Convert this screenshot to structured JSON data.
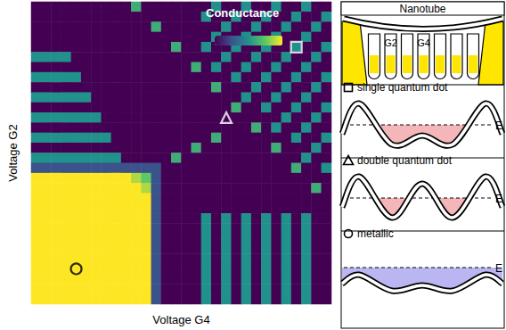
{
  "chart_data": {
    "type": "heatmap",
    "x_label": "Voltage G4",
    "y_label": "Voltage G2",
    "colorbar_label": "Conductance",
    "tick_labels": false,
    "cells": [
      [
        1,
        1,
        1,
        1,
        1,
        1,
        1,
        1,
        1,
        1,
        6,
        1,
        1,
        1,
        1,
        1,
        1,
        1,
        5,
        1,
        1,
        5,
        1,
        1,
        5,
        1,
        1,
        5,
        1,
        1
      ],
      [
        1,
        1,
        1,
        1,
        1,
        1,
        1,
        1,
        1,
        1,
        1,
        1,
        1,
        1,
        1,
        1,
        1,
        5,
        1,
        1,
        5,
        1,
        1,
        5,
        1,
        1,
        5,
        1,
        1,
        5
      ],
      [
        1,
        1,
        1,
        1,
        1,
        1,
        1,
        1,
        1,
        1,
        1,
        1,
        6,
        1,
        1,
        1,
        1,
        1,
        1,
        5,
        1,
        1,
        5,
        1,
        1,
        5,
        1,
        1,
        5,
        1
      ],
      [
        1,
        1,
        1,
        1,
        1,
        1,
        1,
        1,
        1,
        1,
        1,
        1,
        1,
        1,
        1,
        1,
        1,
        1,
        5,
        1,
        1,
        5,
        1,
        1,
        5,
        1,
        1,
        5,
        1,
        1
      ],
      [
        1,
        1,
        1,
        1,
        1,
        1,
        1,
        1,
        1,
        1,
        1,
        1,
        1,
        1,
        6,
        1,
        1,
        5,
        1,
        1,
        5,
        1,
        1,
        5,
        1,
        1,
        5,
        1,
        1,
        5
      ],
      [
        5,
        5,
        5,
        5,
        1,
        1,
        1,
        1,
        1,
        1,
        1,
        1,
        1,
        1,
        1,
        1,
        1,
        1,
        1,
        5,
        1,
        1,
        5,
        1,
        1,
        5,
        1,
        1,
        5,
        1
      ],
      [
        1,
        1,
        1,
        1,
        1,
        1,
        1,
        1,
        1,
        1,
        1,
        1,
        1,
        1,
        1,
        1,
        6,
        1,
        5,
        1,
        1,
        5,
        1,
        1,
        5,
        1,
        1,
        5,
        1,
        1
      ],
      [
        5,
        5,
        5,
        5,
        5,
        1,
        1,
        1,
        1,
        1,
        1,
        1,
        1,
        1,
        1,
        1,
        1,
        1,
        1,
        1,
        5,
        1,
        1,
        5,
        1,
        1,
        5,
        1,
        1,
        5
      ],
      [
        1,
        1,
        1,
        1,
        1,
        1,
        1,
        1,
        1,
        1,
        1,
        1,
        1,
        1,
        1,
        1,
        1,
        1,
        6,
        1,
        1,
        1,
        5,
        1,
        1,
        5,
        1,
        1,
        5,
        1
      ],
      [
        5,
        5,
        5,
        5,
        5,
        5,
        1,
        1,
        1,
        1,
        1,
        1,
        1,
        1,
        1,
        1,
        1,
        1,
        1,
        1,
        1,
        5,
        1,
        1,
        5,
        1,
        1,
        5,
        1,
        1
      ],
      [
        1,
        1,
        1,
        1,
        1,
        1,
        1,
        1,
        1,
        1,
        1,
        1,
        1,
        1,
        1,
        1,
        1,
        1,
        1,
        1,
        6,
        1,
        1,
        5,
        1,
        1,
        5,
        1,
        1,
        5
      ],
      [
        5,
        5,
        5,
        5,
        5,
        5,
        5,
        1,
        1,
        1,
        1,
        1,
        1,
        1,
        1,
        1,
        1,
        1,
        1,
        1,
        1,
        1,
        1,
        1,
        1,
        5,
        1,
        1,
        5,
        1
      ],
      [
        1,
        1,
        1,
        1,
        1,
        1,
        1,
        1,
        1,
        1,
        1,
        1,
        1,
        1,
        1,
        1,
        1,
        1,
        1,
        1,
        1,
        1,
        6,
        1,
        5,
        1,
        1,
        5,
        1,
        1
      ],
      [
        5,
        5,
        5,
        5,
        5,
        5,
        5,
        5,
        1,
        1,
        1,
        1,
        1,
        1,
        1,
        1,
        1,
        1,
        6,
        1,
        1,
        1,
        1,
        1,
        1,
        1,
        5,
        1,
        1,
        5
      ],
      [
        1,
        1,
        1,
        1,
        1,
        1,
        1,
        1,
        1,
        1,
        1,
        1,
        1,
        1,
        1,
        1,
        6,
        1,
        1,
        1,
        1,
        1,
        1,
        1,
        6,
        1,
        1,
        1,
        5,
        1
      ],
      [
        5,
        5,
        5,
        5,
        5,
        5,
        5,
        5,
        5,
        1,
        1,
        1,
        1,
        1,
        6,
        1,
        1,
        1,
        1,
        1,
        1,
        1,
        1,
        1,
        1,
        1,
        1,
        5,
        1,
        1
      ],
      [
        3,
        3,
        3,
        3,
        3,
        3,
        3,
        3,
        3,
        3,
        3,
        3,
        3,
        1,
        1,
        1,
        1,
        1,
        1,
        1,
        1,
        1,
        1,
        1,
        1,
        1,
        6,
        1,
        1,
        5
      ],
      [
        9,
        9,
        9,
        9,
        9,
        9,
        9,
        9,
        9,
        9,
        8,
        7,
        3,
        1,
        1,
        1,
        1,
        1,
        1,
        1,
        1,
        1,
        1,
        1,
        1,
        1,
        1,
        1,
        1,
        1
      ],
      [
        9,
        9,
        9,
        9,
        9,
        9,
        9,
        9,
        9,
        9,
        9,
        8,
        3,
        1,
        1,
        1,
        1,
        1,
        1,
        1,
        1,
        1,
        1,
        1,
        1,
        1,
        1,
        1,
        6,
        1
      ],
      [
        9,
        9,
        9,
        9,
        9,
        9,
        9,
        9,
        9,
        9,
        9,
        9,
        3,
        1,
        1,
        1,
        1,
        1,
        1,
        1,
        1,
        1,
        1,
        1,
        1,
        1,
        1,
        1,
        1,
        1
      ],
      [
        9,
        9,
        9,
        9,
        9,
        9,
        9,
        9,
        9,
        9,
        9,
        9,
        3,
        1,
        1,
        1,
        1,
        1,
        1,
        1,
        1,
        1,
        1,
        1,
        1,
        1,
        1,
        1,
        1,
        1
      ],
      [
        9,
        9,
        9,
        9,
        9,
        9,
        9,
        9,
        9,
        9,
        9,
        9,
        3,
        1,
        1,
        1,
        1,
        5,
        1,
        5,
        1,
        5,
        1,
        5,
        1,
        5,
        1,
        5,
        1,
        1
      ],
      [
        9,
        9,
        9,
        9,
        9,
        9,
        9,
        9,
        9,
        9,
        9,
        9,
        3,
        1,
        1,
        1,
        1,
        5,
        1,
        5,
        1,
        5,
        1,
        5,
        1,
        5,
        1,
        5,
        1,
        1
      ],
      [
        9,
        9,
        9,
        9,
        9,
        9,
        9,
        9,
        9,
        9,
        9,
        9,
        3,
        1,
        1,
        1,
        1,
        5,
        1,
        5,
        1,
        5,
        1,
        5,
        1,
        5,
        1,
        5,
        1,
        1
      ],
      [
        9,
        9,
        9,
        9,
        9,
        9,
        9,
        9,
        9,
        9,
        9,
        9,
        3,
        1,
        1,
        1,
        1,
        5,
        1,
        5,
        1,
        5,
        1,
        5,
        1,
        5,
        1,
        5,
        1,
        1
      ],
      [
        9,
        9,
        9,
        9,
        9,
        9,
        9,
        9,
        9,
        9,
        9,
        9,
        3,
        1,
        1,
        1,
        1,
        5,
        1,
        5,
        1,
        5,
        1,
        5,
        1,
        5,
        1,
        5,
        1,
        1
      ],
      [
        9,
        9,
        9,
        9,
        9,
        9,
        9,
        9,
        9,
        9,
        9,
        9,
        3,
        1,
        1,
        1,
        1,
        5,
        1,
        5,
        1,
        5,
        1,
        5,
        1,
        5,
        1,
        5,
        1,
        1
      ],
      [
        9,
        9,
        9,
        9,
        9,
        9,
        9,
        9,
        9,
        9,
        9,
        9,
        3,
        1,
        1,
        1,
        1,
        5,
        1,
        5,
        1,
        5,
        1,
        5,
        1,
        5,
        1,
        5,
        1,
        1
      ],
      [
        9,
        9,
        9,
        9,
        9,
        9,
        9,
        9,
        9,
        9,
        9,
        9,
        3,
        1,
        1,
        1,
        1,
        5,
        1,
        5,
        1,
        5,
        1,
        5,
        1,
        5,
        1,
        5,
        1,
        1
      ],
      [
        9,
        9,
        9,
        9,
        9,
        9,
        9,
        9,
        9,
        9,
        9,
        9,
        3,
        1,
        1,
        1,
        1,
        5,
        1,
        5,
        1,
        5,
        1,
        5,
        1,
        5,
        1,
        5,
        1,
        1
      ]
    ],
    "markers": [
      {
        "marker": "square",
        "color": "#ffffff",
        "x": 26,
        "y": 25
      },
      {
        "marker": "triangle",
        "color": "#ffffff",
        "x": 19,
        "y": 18
      },
      {
        "marker": "circle",
        "color": "#000000",
        "x": 4,
        "y": 3
      }
    ]
  },
  "schematic": {
    "title": "Nanotube",
    "gates": [
      "G2",
      "G4"
    ],
    "panels": [
      {
        "marker": "square",
        "label": "single quantum dot",
        "level_label": "E"
      },
      {
        "marker": "triangle",
        "label": "double quantum dot",
        "level_label": "E"
      },
      {
        "marker": "circle",
        "label": "metallic",
        "level_label": "E"
      }
    ]
  }
}
